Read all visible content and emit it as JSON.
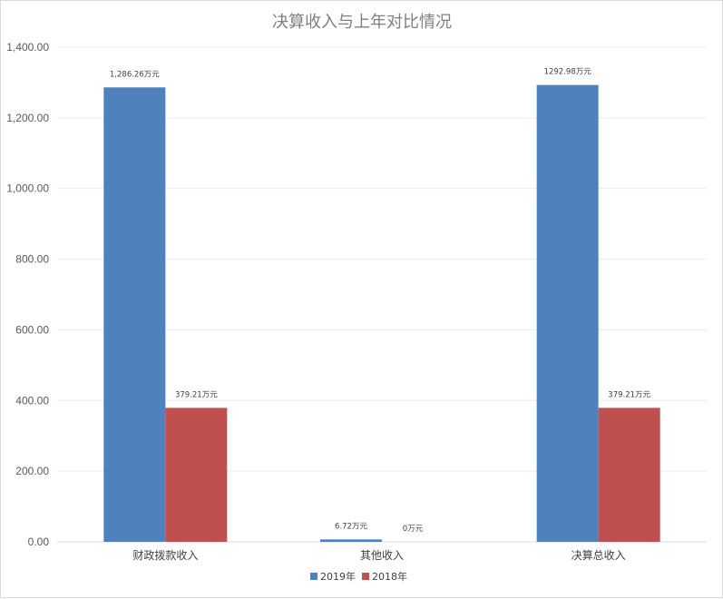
{
  "chart_data": {
    "type": "bar",
    "title": "决算收入与上年对比情况",
    "categories": [
      "财政拨款收入",
      "其他收入",
      "决算总收入"
    ],
    "series": [
      {
        "name": "2019年",
        "color": "#4f81bd",
        "values": [
          1286.26,
          6.72,
          1292.98
        ],
        "labels": [
          "1,286.26万元",
          "6.72万元",
          "1292.98万元"
        ]
      },
      {
        "name": "2018年",
        "color": "#c0504d",
        "values": [
          379.21,
          0,
          379.21
        ],
        "labels": [
          "379.21万元",
          "0万元",
          "379.21万元"
        ]
      }
    ],
    "ylim": [
      0,
      1400
    ],
    "yticks": [
      "0.00",
      "200.00",
      "400.00",
      "600.00",
      "800.00",
      "1,000.00",
      "1,200.00",
      "1,400.00"
    ],
    "grid": true,
    "legend_position": "bottom"
  }
}
